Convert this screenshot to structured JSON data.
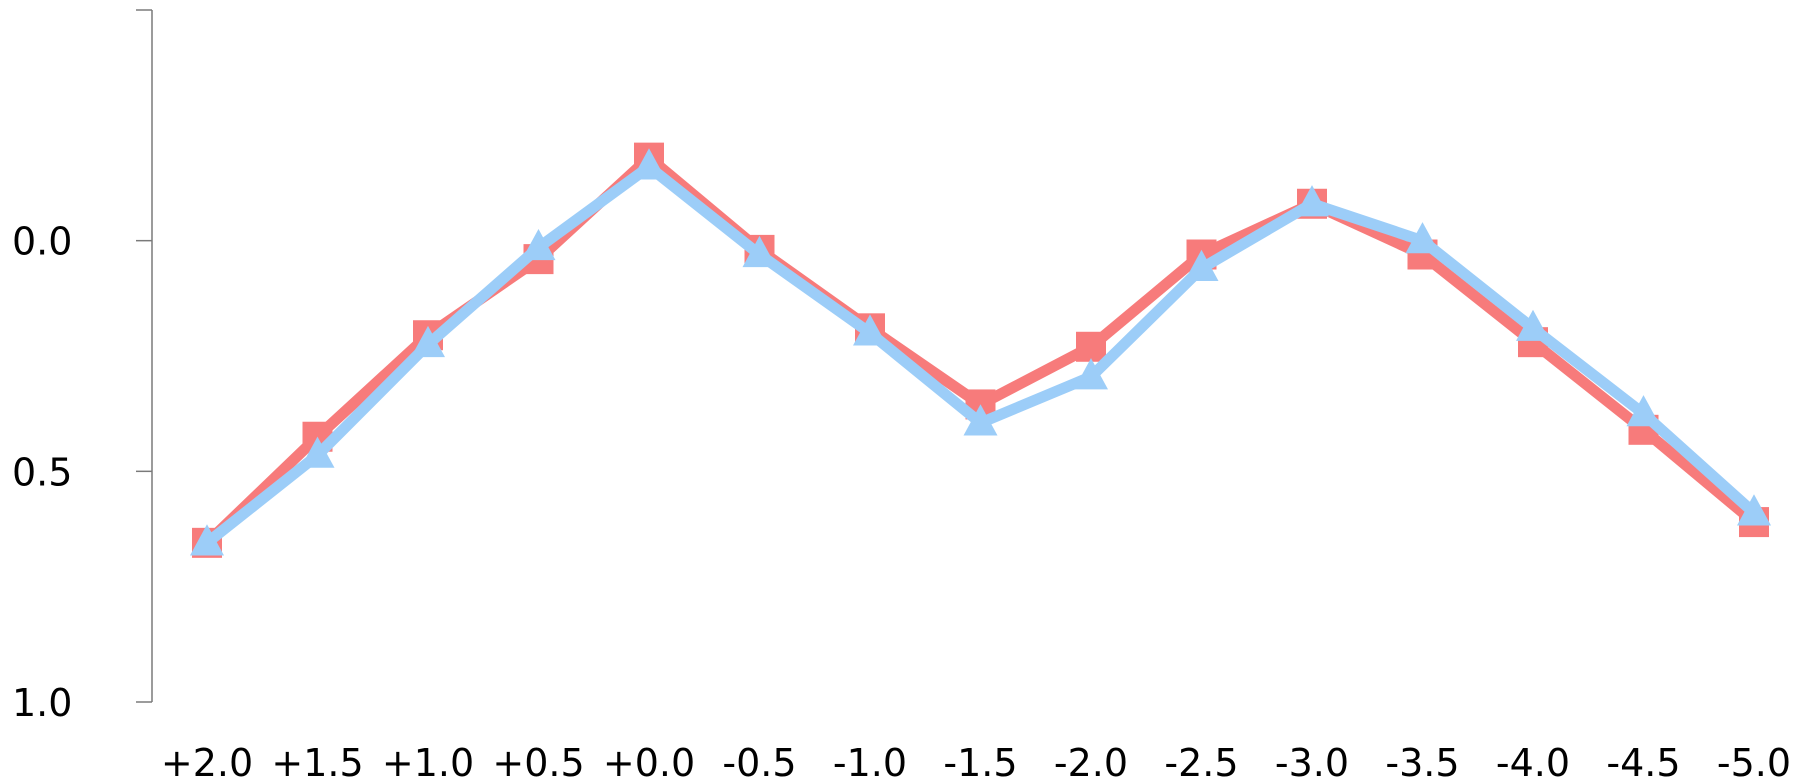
{
  "chart_data": {
    "type": "line",
    "title": "",
    "xlabel": "",
    "ylabel": "",
    "categories": [
      "+2.0",
      "+1.5",
      "+1.0",
      "+0.5",
      "+0.0",
      "-0.5",
      "-1.0",
      "-1.5",
      "-2.0",
      "-2.5",
      "-3.0",
      "-3.5",
      "-4.0",
      "-4.5",
      "-5.0"
    ],
    "y_ticks": [
      "0.0",
      "0.5",
      "1.0"
    ],
    "y_tick_values": [
      0.0,
      0.5,
      1.0
    ],
    "ylim": [
      -0.5,
      1.0
    ],
    "y_inverted": true,
    "grid": false,
    "legend": "none",
    "series": [
      {
        "marker": "square",
        "color": "#f77b7b",
        "values": [
          0.655,
          0.425,
          0.205,
          0.04,
          -0.18,
          0.02,
          0.19,
          0.355,
          0.23,
          0.03,
          -0.08,
          0.03,
          0.22,
          0.41,
          0.61
        ]
      },
      {
        "marker": "triangle",
        "color": "#9ccdf8",
        "values": [
          0.655,
          0.465,
          0.225,
          0.015,
          -0.16,
          0.03,
          0.2,
          0.395,
          0.295,
          0.06,
          -0.08,
          0.0,
          0.19,
          0.375,
          0.59
        ]
      }
    ]
  }
}
